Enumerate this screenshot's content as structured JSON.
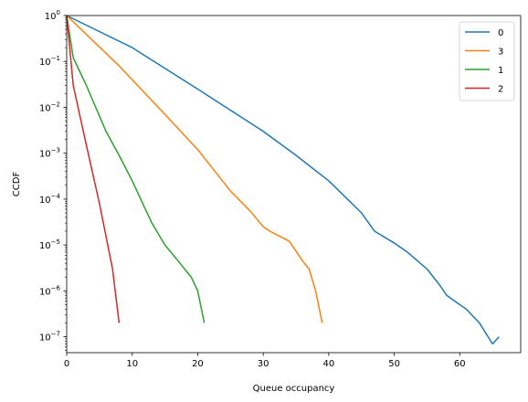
{
  "chart_data": {
    "type": "line",
    "title": "",
    "xlabel": "Queue occupancy",
    "ylabel": "CCDF",
    "xlim": [
      0,
      69.3
    ],
    "ylim": [
      4.5e-08,
      1
    ],
    "yscale": "log",
    "xticks": [
      0,
      10,
      20,
      30,
      40,
      50,
      60
    ],
    "xtick_labels": [
      "0",
      "10",
      "20",
      "30",
      "40",
      "50",
      "60"
    ],
    "yticks": [
      1e-07,
      1e-06,
      1e-05,
      0.0001,
      0.001,
      0.01,
      0.1,
      1
    ],
    "ytick_labels": [
      {
        "base": "10",
        "exp": "−7"
      },
      {
        "base": "10",
        "exp": "−6"
      },
      {
        "base": "10",
        "exp": "−5"
      },
      {
        "base": "10",
        "exp": "−4"
      },
      {
        "base": "10",
        "exp": "−3"
      },
      {
        "base": "10",
        "exp": "−2"
      },
      {
        "base": "10",
        "exp": "−1"
      },
      {
        "base": "10",
        "exp": "0"
      }
    ],
    "grid": false,
    "legend_position": "top-right",
    "series": [
      {
        "name": "0",
        "color": "#1f77b4",
        "x": [
          0,
          10,
          20,
          30,
          35,
          40,
          45,
          47,
          50,
          52,
          55,
          57,
          58,
          60,
          61,
          63,
          65,
          66
        ],
        "y": [
          1,
          0.2,
          0.025,
          0.003,
          0.0009,
          0.00025,
          5e-05,
          2e-05,
          1.1e-05,
          7e-06,
          3e-06,
          1.3e-06,
          8e-07,
          5e-07,
          4e-07,
          2e-07,
          7e-08,
          1e-07
        ]
      },
      {
        "name": "3",
        "color": "#ff7f0e",
        "x": [
          0,
          8,
          15,
          20,
          25,
          28,
          30,
          31,
          34,
          36,
          37,
          38,
          39
        ],
        "y": [
          1,
          0.08,
          0.007,
          0.0012,
          0.00015,
          5.5e-05,
          2.5e-05,
          2e-05,
          1.2e-05,
          4.5e-06,
          3e-06,
          1e-06,
          2e-07
        ]
      },
      {
        "name": "1",
        "color": "#2ca02c",
        "x": [
          0,
          1,
          3,
          6,
          8,
          10,
          13,
          15,
          17,
          19,
          20,
          21
        ],
        "y": [
          1,
          0.12,
          0.03,
          0.003,
          0.0009,
          0.00025,
          3e-05,
          1e-05,
          4.5e-06,
          2e-06,
          1e-06,
          2e-07
        ]
      },
      {
        "name": "2",
        "color": "#d62728",
        "x": [
          0,
          1,
          3,
          5,
          7,
          8
        ],
        "y": [
          1,
          0.03,
          0.0015,
          8e-05,
          3e-06,
          2e-07
        ]
      }
    ]
  }
}
